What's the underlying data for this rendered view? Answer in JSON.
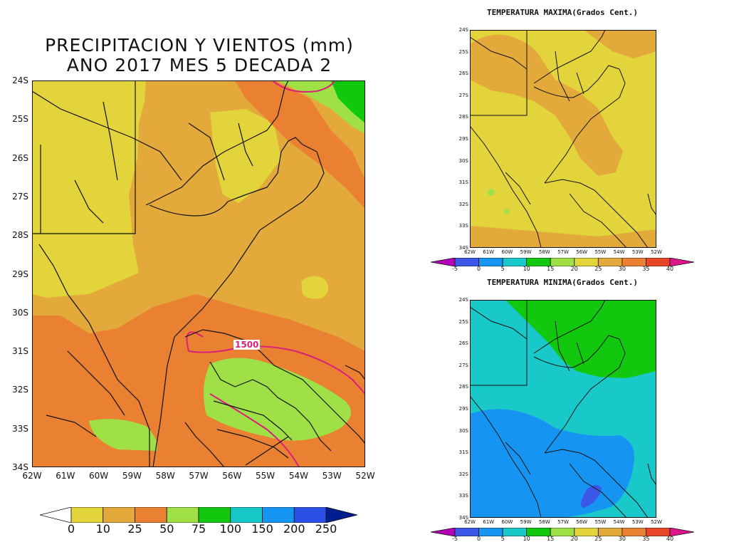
{
  "main_map": {
    "title_line1": "PRECIPITACION Y VIENTOS (mm)",
    "title_line2": "ANO 2017 MES 5 DECADA 2",
    "contour_label": "1500",
    "lat_ticks": [
      "24S",
      "25S",
      "26S",
      "27S",
      "28S",
      "29S",
      "30S",
      "31S",
      "32S",
      "33S",
      "34S"
    ],
    "lon_ticks": [
      "62W",
      "61W",
      "60W",
      "59W",
      "58W",
      "57W",
      "56W",
      "55W",
      "54W",
      "53W",
      "52W"
    ],
    "colorbar": {
      "labels": [
        "0",
        "10",
        "25",
        "50",
        "75",
        "100",
        "150",
        "200",
        "250"
      ],
      "colors": [
        "#ffffff",
        "#e2d43a",
        "#e3a93a",
        "#ea8032",
        "#9ee046",
        "#11c80f",
        "#18c8c8",
        "#1694f2",
        "#2b50e6",
        "#001e8f"
      ]
    }
  },
  "tmax_map": {
    "title": "TEMPERATURA MAXIMA(Grados Cent.)",
    "lat_ticks": [
      "24S",
      "25S",
      "26S",
      "27S",
      "28S",
      "29S",
      "30S",
      "31S",
      "32S",
      "33S",
      "34S"
    ],
    "lon_ticks": [
      "62W",
      "61W",
      "60W",
      "59W",
      "58W",
      "57W",
      "56W",
      "55W",
      "54W",
      "53W",
      "52W"
    ],
    "colorbar": {
      "labels": [
        "-5",
        "0",
        "5",
        "10",
        "15",
        "20",
        "25",
        "30",
        "35",
        "40"
      ],
      "colors": [
        "#b400b4",
        "#3a57e8",
        "#1696f2",
        "#19c8c8",
        "#11c80f",
        "#9ee046",
        "#e2d43a",
        "#e3a93a",
        "#ea8032",
        "#e84628",
        "#e0158c"
      ]
    }
  },
  "tmin_map": {
    "title": "TEMPERATURA MINIMA(Grados Cent.)",
    "lat_ticks": [
      "24S",
      "25S",
      "26S",
      "27S",
      "28S",
      "29S",
      "30S",
      "31S",
      "32S",
      "33S",
      "34S"
    ],
    "lon_ticks": [
      "62W",
      "61W",
      "60W",
      "59W",
      "58W",
      "57W",
      "56W",
      "55W",
      "54W",
      "53W",
      "52W"
    ],
    "colorbar": {
      "labels": [
        "-5",
        "0",
        "5",
        "10",
        "15",
        "20",
        "25",
        "30",
        "35",
        "40"
      ],
      "colors": [
        "#b400b4",
        "#3a57e8",
        "#1696f2",
        "#19c8c8",
        "#11c80f",
        "#9ee046",
        "#e2d43a",
        "#e3a93a",
        "#ea8032",
        "#e84628",
        "#e0158c"
      ]
    }
  }
}
